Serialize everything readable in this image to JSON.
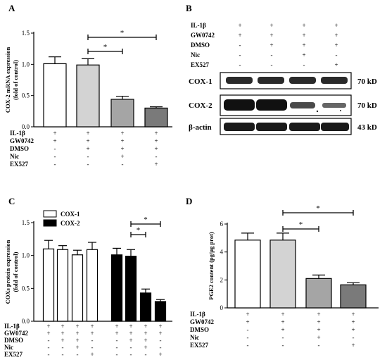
{
  "panels": {
    "a": {
      "label": "A"
    },
    "b": {
      "label": "B"
    },
    "c": {
      "label": "C"
    },
    "d": {
      "label": "D"
    }
  },
  "treatments": [
    "IL-1β",
    "GW0742",
    "DMSO",
    "Nic",
    "EX527"
  ],
  "blot": {
    "rows": [
      {
        "label": "COX-1",
        "size": "70 kD"
      },
      {
        "label": "COX-2",
        "size": "70 kD"
      },
      {
        "label": "β-actin",
        "size": "43 kD"
      }
    ]
  },
  "chart_data": [
    {
      "type": "bar",
      "panel": "A",
      "ylabel": "COX-2 mRNA expression\n(fold of control)",
      "ylim": [
        0,
        1.5
      ],
      "yticks": [
        "0.0",
        "0.5",
        "1.0",
        "1.5"
      ],
      "values": [
        1.01,
        0.99,
        0.44,
        0.3
      ],
      "errors": [
        0.11,
        0.1,
        0.05,
        0.02
      ],
      "colors": [
        "#ffffff",
        "#d3d3d3",
        "#a5a5a5",
        "#7a7a7a"
      ],
      "signs": [
        [
          "+",
          "+",
          "+",
          "+"
        ],
        [
          "+",
          "+",
          "+",
          "+"
        ],
        [
          "-",
          "+",
          "+",
          "+"
        ],
        [
          "-",
          "-",
          "+",
          "-"
        ],
        [
          "-",
          "-",
          "-",
          "+"
        ]
      ],
      "significance": [
        {
          "from": 1,
          "to": 2,
          "label": "*"
        },
        {
          "from": 1,
          "to": 3,
          "label": "*"
        }
      ]
    },
    {
      "type": "bar",
      "panel": "C",
      "ylabel": "COXs protein expression\n(fold of control)",
      "ylim": [
        0,
        1.5
      ],
      "yticks": [
        "0.0",
        "0.5",
        "1.0",
        "1.5"
      ],
      "legend": [
        "COX-1",
        "COX-2"
      ],
      "series": [
        {
          "name": "COX-1",
          "values": [
            1.1,
            1.09,
            1.01,
            1.09
          ],
          "errors": [
            0.13,
            0.06,
            0.07,
            0.11
          ],
          "color": "#ffffff"
        },
        {
          "name": "COX-2",
          "values": [
            1.01,
            0.99,
            0.43,
            0.3
          ],
          "errors": [
            0.1,
            0.1,
            0.06,
            0.03
          ],
          "color": "#000000"
        }
      ],
      "signs": [
        [
          "+",
          "+",
          "+",
          "+",
          "+",
          "+",
          "+",
          "+"
        ],
        [
          "+",
          "+",
          "+",
          "+",
          "+",
          "+",
          "+",
          "+"
        ],
        [
          "-",
          "+",
          "+",
          "-",
          "-",
          "+",
          "+",
          "-"
        ],
        [
          "-",
          "-",
          "+",
          "-",
          "-",
          "-",
          "+",
          "-"
        ],
        [
          "-",
          "-",
          "-",
          "+",
          "-",
          "-",
          "-",
          "+"
        ]
      ],
      "significance": [
        {
          "from": 5,
          "to": 6,
          "label": "*"
        },
        {
          "from": 5,
          "to": 7,
          "label": "*"
        }
      ]
    },
    {
      "type": "bar",
      "panel": "D",
      "ylabel": "PGE2 content (pg/μg prot)",
      "ylim": [
        0,
        6
      ],
      "yticks": [
        "0",
        "2",
        "4",
        "6"
      ],
      "values": [
        4.85,
        4.85,
        2.1,
        1.65
      ],
      "errors": [
        0.5,
        0.5,
        0.25,
        0.15
      ],
      "colors": [
        "#ffffff",
        "#d3d3d3",
        "#a5a5a5",
        "#7a7a7a"
      ],
      "signs": [
        [
          "+",
          "+",
          "+",
          "+"
        ],
        [
          "+",
          "+",
          "+",
          "+"
        ],
        [
          "-",
          "+",
          "+",
          "+"
        ],
        [
          "-",
          "-",
          "+",
          "-"
        ],
        [
          "-",
          "-",
          "-",
          "+"
        ]
      ],
      "significance": [
        {
          "from": 1,
          "to": 2,
          "label": "*"
        },
        {
          "from": 1,
          "to": 3,
          "label": "*"
        }
      ]
    }
  ]
}
